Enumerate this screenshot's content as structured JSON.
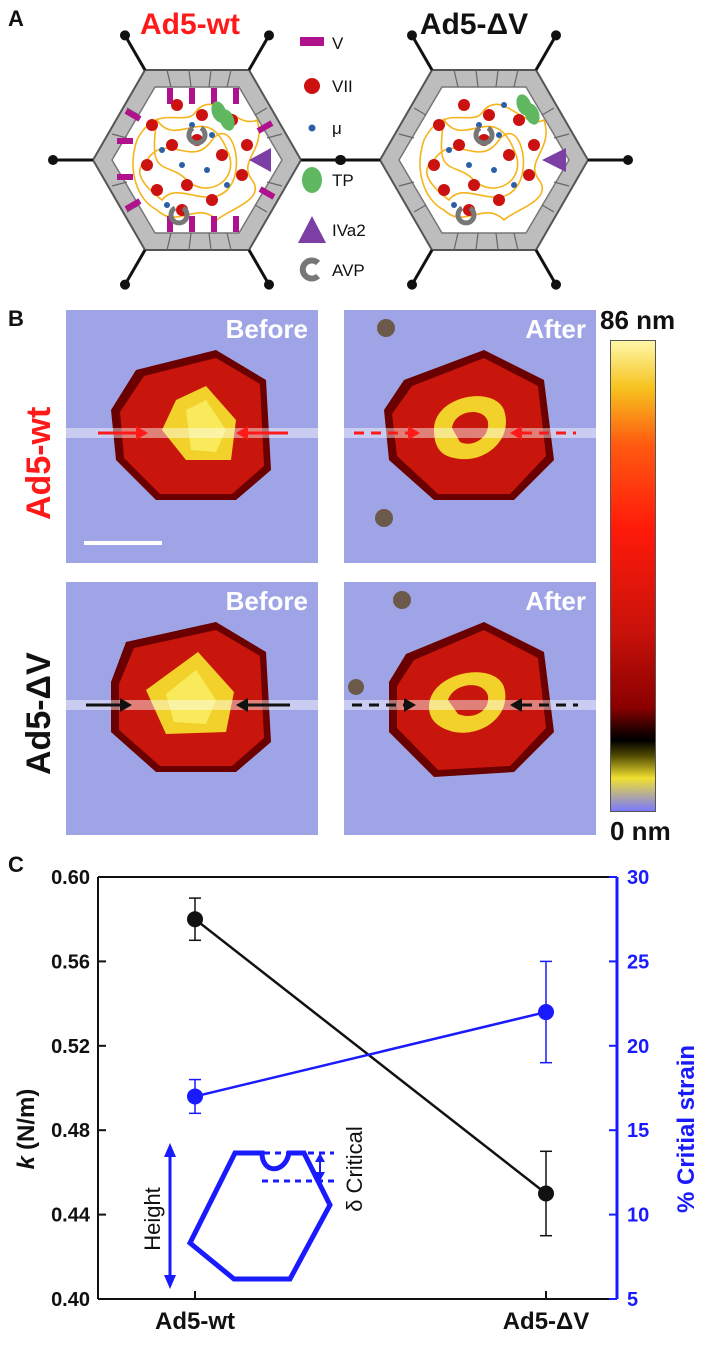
{
  "panels": {
    "a": "A",
    "b": "B",
    "c": "C"
  },
  "colors": {
    "wt": "#ff1a1a",
    "dv": "#111111",
    "stiffness": "#111111",
    "strain": "#1a1aff",
    "shell": "#bdbdbd",
    "dna": "#f6b41c"
  },
  "schematic": {
    "wt_title": "Ad5-wt",
    "dv_title": "Ad5-ΔV",
    "legend": [
      {
        "label": "V",
        "icon": "protein-v-icon"
      },
      {
        "label": "VII",
        "icon": "protein-vii-icon"
      },
      {
        "label": "μ",
        "icon": "protein-mu-icon"
      },
      {
        "label": "TP",
        "icon": "terminal-protein-icon"
      },
      {
        "label": "IVa2",
        "icon": "iva2-triangle-icon"
      },
      {
        "label": "AVP",
        "icon": "avp-protease-icon"
      }
    ]
  },
  "afm": {
    "row_labels": [
      "Ad5-wt",
      "Ad5-ΔV"
    ],
    "before_label": "Before",
    "after_label": "After",
    "colorbar_max": "86 nm",
    "colorbar_min": "0 nm"
  },
  "chart_data": {
    "type": "line",
    "categories": [
      "Ad5-wt",
      "Ad5-ΔV"
    ],
    "ylabel_left": "k (N/m)",
    "ylabel_left_symbol": "k",
    "ylabel_left_unit": "(N/m)",
    "ylabel_right": "% Critial strain",
    "ylim_left": [
      0.4,
      0.6
    ],
    "ylim_right": [
      5,
      30
    ],
    "yticks_left": [
      "0.40",
      "0.44",
      "0.48",
      "0.52",
      "0.56",
      "0.60"
    ],
    "yticks_right": [
      "5",
      "10",
      "15",
      "20",
      "25",
      "30"
    ],
    "series": [
      {
        "name": "k (N/m)",
        "axis": "left",
        "values": [
          0.58,
          0.45
        ],
        "errors": [
          0.01,
          0.02
        ]
      },
      {
        "name": "% Critial strain",
        "axis": "right",
        "values": [
          17,
          22
        ],
        "errors": [
          1,
          3
        ]
      }
    ],
    "inset": {
      "height_label": "Height",
      "delta_label": "δ Critical"
    }
  }
}
